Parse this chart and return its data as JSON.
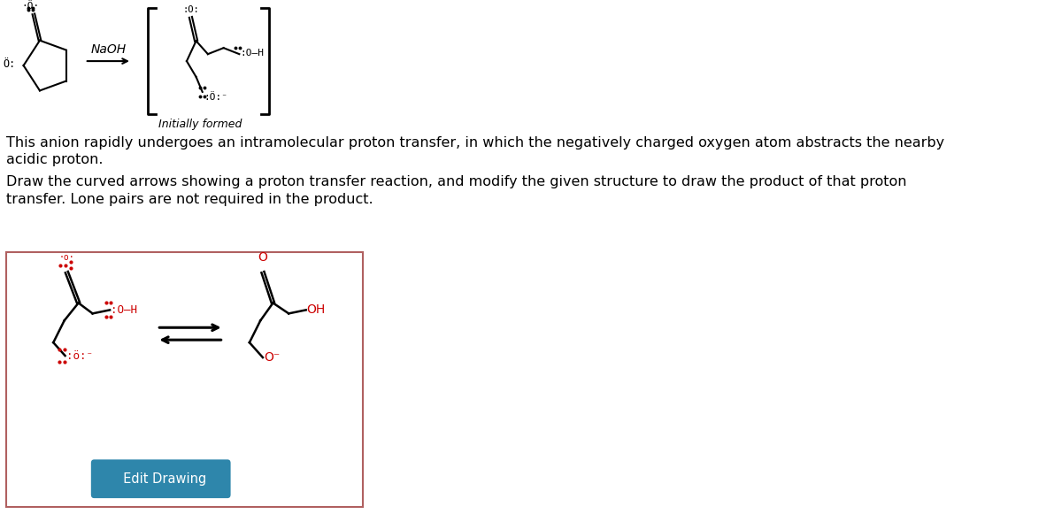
{
  "bg_color": "#ffffff",
  "text_color": "#000000",
  "red_color": "#cc0000",
  "description_lines": [
    "This anion rapidly undergoes an intramolecular proton transfer, in which the negatively charged oxygen atom abstracts the nearby",
    "acidic proton.",
    "Draw the curved arrows showing a proton transfer reaction, and modify the given structure to draw the product of that proton",
    "transfer. Lone pairs are not required in the product."
  ],
  "box_edge_color": "#b06060",
  "box_face_color": "#ffffff",
  "edit_button_label": "  Edit Drawing",
  "edit_button_bg": "#2e86ab",
  "edit_button_text": "#ffffff"
}
